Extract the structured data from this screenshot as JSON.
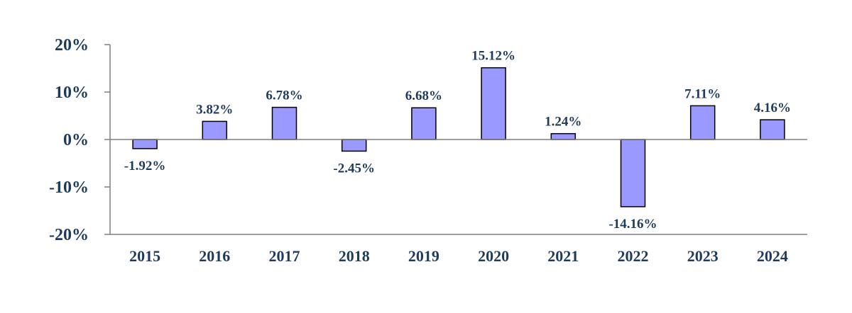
{
  "chart_data": {
    "type": "bar",
    "categories": [
      "2015",
      "2016",
      "2017",
      "2018",
      "2019",
      "2020",
      "2021",
      "2022",
      "2023",
      "2024"
    ],
    "values": [
      -1.92,
      3.82,
      6.78,
      -2.45,
      6.68,
      15.12,
      1.24,
      -14.16,
      7.11,
      4.16
    ],
    "data_labels": [
      "-1.92%",
      "3.82%",
      "6.78%",
      "-2.45%",
      "6.68%",
      "15.12%",
      "1.24%",
      "-14.16%",
      "7.11%",
      "4.16%"
    ],
    "y_ticks": [
      20,
      10,
      0,
      -10,
      -20
    ],
    "y_tick_labels": [
      "20%",
      "10%",
      "0%",
      "-10%",
      "-20%"
    ],
    "ylim": [
      -20,
      20
    ],
    "grid": false,
    "legend": "none",
    "bar_color": "#9999ff",
    "bar_outline_color": "#000000",
    "text_color": "#1f3b5b",
    "axis_color": "#7f7f7f"
  }
}
